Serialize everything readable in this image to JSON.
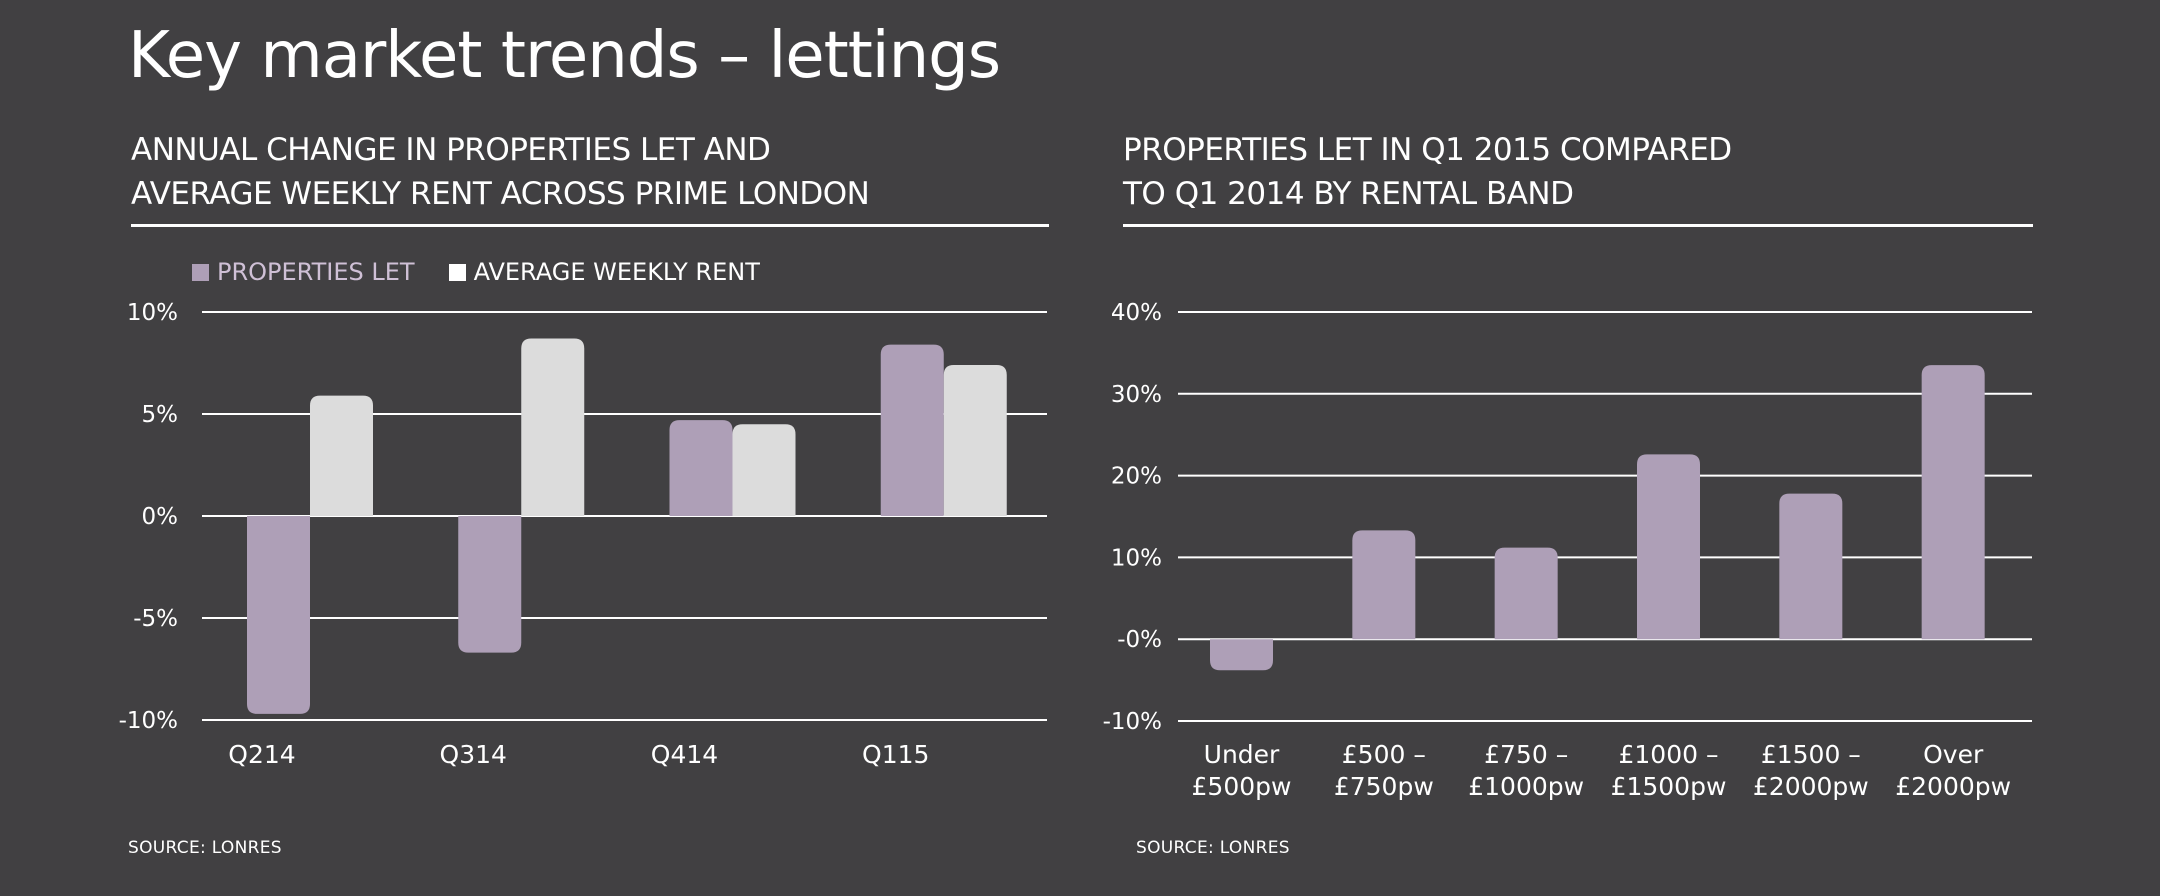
{
  "page": {
    "title": "Key market trends – lettings"
  },
  "left_panel": {
    "heading_lines": [
      "ANNUAL CHANGE IN PROPERTIES LET AND",
      "AVERAGE WEEKLY RENT ACROSS PRIME LONDON"
    ],
    "source": "SOURCE: LONRES"
  },
  "right_panel": {
    "heading_lines": [
      "PROPERTIES LET IN Q1 2015 COMPARED",
      "TO Q1 2014 BY RENTAL BAND"
    ],
    "source": "SOURCE: LONRES"
  },
  "colors": {
    "background": "#414042",
    "properties_let": "#ae9fb7",
    "average_weekly_rent": "#dcdcdc",
    "text": "#ffffff"
  },
  "chart_data": [
    {
      "type": "bar",
      "title": "ANNUAL CHANGE IN PROPERTIES LET AND AVERAGE WEEKLY RENT ACROSS PRIME LONDON",
      "categories": [
        "Q214",
        "Q314",
        "Q414",
        "Q115"
      ],
      "series": [
        {
          "name": "PROPERTIES LET",
          "color": "#ae9fb7",
          "values": [
            -9.7,
            -6.7,
            4.7,
            8.4
          ]
        },
        {
          "name": "AVERAGE WEEKLY RENT",
          "color": "#dcdcdc",
          "values": [
            5.9,
            8.7,
            4.5,
            7.4
          ]
        }
      ],
      "yticks": [
        10,
        5,
        0,
        -5,
        -10
      ],
      "ytick_labels": [
        "10%",
        "5%",
        "0%",
        "-5%",
        "-10%"
      ],
      "ylim": [
        -10,
        10
      ],
      "xlabel": "",
      "ylabel": "",
      "legend": "top-left",
      "grid": true
    },
    {
      "type": "bar",
      "title": "PROPERTIES LET IN Q1 2015 COMPARED TO Q1 2014 BY RENTAL BAND",
      "categories": [
        [
          "Under",
          "£500pw"
        ],
        [
          "£500 –",
          "£750pw"
        ],
        [
          "£750 –",
          "£1000pw"
        ],
        [
          "£1000 –",
          "£1500pw"
        ],
        [
          "£1500 –",
          "£2000pw"
        ],
        [
          "Over",
          "£2000pw"
        ]
      ],
      "series": [
        {
          "name": "PROPERTIES LET",
          "color": "#ae9fb7",
          "values": [
            -3.8,
            13.3,
            11.2,
            22.6,
            17.8,
            33.5
          ]
        }
      ],
      "yticks": [
        40,
        30,
        20,
        10,
        0,
        -10
      ],
      "ytick_labels": [
        "40%",
        "30%",
        "20%",
        "10%",
        "-0%",
        "-10%"
      ],
      "ylim": [
        -10,
        40
      ],
      "xlabel": "",
      "ylabel": "",
      "grid": true
    }
  ]
}
